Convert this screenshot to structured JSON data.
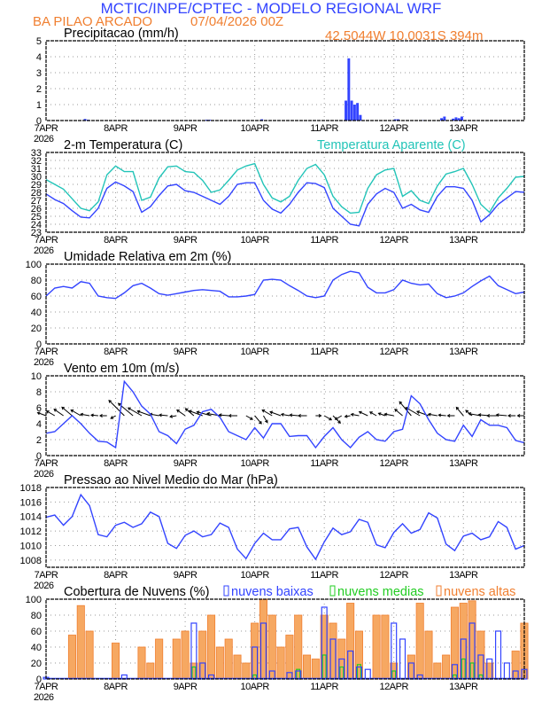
{
  "header": {
    "title": "MCTIC/INPE/CPTEC - MODELO REGIONAL WRF",
    "station": "BA PILAO ARCADO",
    "run": "07/04/2026 00Z",
    "location": "42.5044W 10.0031S 394m"
  },
  "colors": {
    "blue": "#3344ff",
    "orange": "#f07f30",
    "cyan": "#22c4b8",
    "green": "#22cc22",
    "orange_fill": "#f6a862"
  },
  "x_axis": {
    "labels": [
      "7APR",
      "8APR",
      "9APR",
      "10APR",
      "11APR",
      "12APR",
      "13APR"
    ],
    "year": "2026",
    "step_hours": 3,
    "range_hours": [
      0,
      165
    ]
  },
  "chart_data": [
    {
      "type": "bar",
      "id": "precip",
      "title": "Precipitacao (mm/h)",
      "ylim": [
        0,
        5
      ],
      "yticks": [
        "0",
        "1",
        "2",
        "3",
        "4",
        "5"
      ],
      "hourly_values": [
        [
          13,
          0.1
        ],
        [
          14,
          0.05
        ],
        [
          55,
          0.05
        ],
        [
          56,
          0.05
        ],
        [
          74,
          0.08
        ],
        [
          103,
          1.25
        ],
        [
          104,
          3.9
        ],
        [
          105,
          1.25
        ],
        [
          106,
          1.0
        ],
        [
          107,
          1.1
        ],
        [
          108,
          0.35
        ],
        [
          120,
          0.08
        ],
        [
          121,
          0.08
        ],
        [
          130,
          0.03
        ],
        [
          136,
          0.15
        ],
        [
          137,
          0.25
        ],
        [
          140,
          0.12
        ],
        [
          141,
          0.2
        ],
        [
          142,
          0.15
        ],
        [
          143,
          0.25
        ]
      ]
    },
    {
      "type": "line",
      "id": "temp",
      "title": "2-m Temperatura (C)",
      "ylim": [
        23,
        33
      ],
      "yticks": [
        "23",
        "24",
        "25",
        "26",
        "27",
        "28",
        "29",
        "30",
        "31",
        "32",
        "33"
      ],
      "series": [
        {
          "name": "Temperatura",
          "values": [
            27.8,
            27.1,
            26.6,
            25.7,
            24.9,
            24.8,
            26.0,
            28.5,
            29.3,
            28.8,
            28.1,
            25.5,
            26.2,
            27.6,
            28.8,
            29.0,
            28.2,
            28.0,
            27.5,
            27.0,
            26.5,
            27.5,
            29.0,
            29.2,
            29.2,
            27.0,
            25.9,
            25.4,
            26.5,
            28.0,
            29.2,
            29.1,
            28.6,
            26.0,
            25.0,
            24.0,
            23.8,
            26.5,
            27.8,
            28.5,
            28.0,
            26.0,
            26.5,
            25.8,
            25.5,
            27.5,
            28.7,
            28.7,
            28.5,
            27.0,
            24.3,
            25.2,
            26.5,
            27.3,
            28.1,
            28.0
          ]
        },
        {
          "name": "Temperatura Aparente (C)",
          "values": [
            29.6,
            29.0,
            28.4,
            27.2,
            26.0,
            25.7,
            26.8,
            30.2,
            31.3,
            30.6,
            30.6,
            27.0,
            27.4,
            29.8,
            31.2,
            31.3,
            30.6,
            30.5,
            29.5,
            28.0,
            28.3,
            29.5,
            30.8,
            31.3,
            31.6,
            29.0,
            27.3,
            26.8,
            27.5,
            29.5,
            31.0,
            31.5,
            30.2,
            27.5,
            26.2,
            25.4,
            25.5,
            28.5,
            30.2,
            30.8,
            31.0,
            27.5,
            28.2,
            27.0,
            26.6,
            28.8,
            30.3,
            30.6,
            31.0,
            29.0,
            26.5,
            25.5,
            27.3,
            28.5,
            29.9,
            30.0
          ]
        }
      ]
    },
    {
      "type": "line",
      "id": "rh",
      "title": "Umidade Relativa em 2m (%)",
      "ylim": [
        0,
        100
      ],
      "yticks": [
        "0",
        "20",
        "40",
        "60",
        "80",
        "100"
      ],
      "values": [
        60,
        70,
        72,
        70,
        78,
        76,
        60,
        58,
        57,
        64,
        73,
        76,
        70,
        63,
        61,
        63,
        65,
        67,
        68,
        67,
        66,
        59,
        59,
        60,
        62,
        80,
        81,
        80,
        73,
        67,
        60,
        58,
        60,
        80,
        87,
        91,
        89,
        71,
        64,
        64,
        68,
        80,
        76,
        74,
        75,
        63,
        58,
        60,
        64,
        72,
        79,
        85,
        73,
        68,
        63,
        65
      ]
    },
    {
      "type": "line",
      "id": "wind",
      "title": "Vento em 10m (m/s)",
      "ylim": [
        0,
        10
      ],
      "yticks": [
        "0",
        "2",
        "4",
        "6",
        "8",
        "10"
      ],
      "values": [
        2.8,
        3.0,
        4.0,
        5.0,
        4.0,
        2.8,
        1.8,
        1.7,
        1.0,
        9.3,
        8.0,
        6.2,
        5.2,
        3.0,
        2.5,
        1.5,
        3.3,
        3.8,
        5.5,
        5.8,
        4.8,
        3.0,
        2.5,
        2.0,
        3.5,
        2.2,
        4.0,
        4.0,
        2.4,
        2.5,
        2.5,
        1.0,
        2.4,
        3.5,
        2.0,
        1.0,
        2.3,
        3.0,
        2.0,
        1.8,
        3.0,
        3.3,
        7.5,
        6.5,
        4.5,
        2.8,
        2.0,
        1.8,
        3.8,
        2.4,
        4.5,
        3.8,
        3.8,
        3.5,
        1.9,
        1.6
      ],
      "direction_from_deg": [
        110,
        120,
        125,
        130,
        120,
        100,
        95,
        90,
        60,
        135,
        130,
        120,
        110,
        100,
        95,
        80,
        125,
        130,
        110,
        105,
        100,
        95,
        90,
        300,
        320,
        330,
        120,
        110,
        100,
        95,
        90,
        270,
        300,
        315,
        60,
        80,
        100,
        115,
        120,
        110,
        100,
        130,
        140,
        120,
        110,
        100,
        95,
        90,
        140,
        130,
        100,
        95,
        90,
        95,
        90,
        90
      ]
    },
    {
      "type": "line",
      "id": "pres",
      "title": "Pressao ao Nivel Medio do Mar (hPa)",
      "ylim": [
        1007,
        1018
      ],
      "yticks": [
        "1008",
        "1010",
        "1012",
        "1014",
        "1016",
        "1018"
      ],
      "values": [
        1013.9,
        1014.2,
        1012.8,
        1014.0,
        1017.0,
        1015.5,
        1011.5,
        1011.2,
        1012.8,
        1013.2,
        1012.5,
        1013.0,
        1014.6,
        1014.0,
        1010.3,
        1009.6,
        1011.4,
        1012.0,
        1011.2,
        1011.5,
        1013.1,
        1012.5,
        1009.5,
        1008.2,
        1010.3,
        1011.7,
        1010.8,
        1010.8,
        1012.3,
        1012.5,
        1009.8,
        1008.1,
        1010.5,
        1012.4,
        1011.5,
        1011.9,
        1013.6,
        1013.2,
        1010.1,
        1009.7,
        1011.8,
        1013.0,
        1011.7,
        1012.2,
        1014.5,
        1013.8,
        1010.2,
        1009.3,
        1011.3,
        1011.7,
        1010.8,
        1011.2,
        1013.3,
        1012.5,
        1009.5,
        1010.0
      ]
    },
    {
      "type": "bar",
      "id": "cloud",
      "title": "Cobertura de Nuvens (%)",
      "ylim": [
        0,
        100
      ],
      "yticks": [
        "0",
        "20",
        "40",
        "60",
        "80",
        "100"
      ],
      "series": [
        {
          "name": "nuvens altas",
          "values": [
            0,
            0,
            0,
            55,
            92,
            60,
            0,
            0,
            45,
            0,
            0,
            40,
            20,
            50,
            0,
            50,
            60,
            20,
            60,
            80,
            40,
            50,
            30,
            20,
            70,
            100,
            80,
            40,
            55,
            80,
            30,
            25,
            80,
            70,
            50,
            95,
            60,
            0,
            80,
            80,
            20,
            0,
            30,
            95,
            60,
            20,
            30,
            90,
            95,
            98,
            60,
            20,
            0,
            0,
            35,
            70
          ]
        },
        {
          "name": "nuvens baixas",
          "values": [
            2,
            0,
            0,
            0,
            0,
            0,
            0,
            0,
            0,
            5,
            0,
            0,
            0,
            0,
            0,
            0,
            0,
            70,
            20,
            5,
            0,
            0,
            0,
            0,
            40,
            70,
            10,
            0,
            8,
            10,
            0,
            0,
            90,
            50,
            25,
            35,
            15,
            12,
            0,
            0,
            70,
            50,
            20,
            5,
            0,
            0,
            0,
            18,
            50,
            70,
            30,
            25,
            60,
            20,
            10,
            12
          ]
        },
        {
          "name": "nuvens medias",
          "values": [
            0,
            0,
            0,
            0,
            0,
            0,
            0,
            0,
            0,
            0,
            0,
            0,
            0,
            0,
            0,
            0,
            0,
            15,
            0,
            0,
            0,
            0,
            0,
            0,
            5,
            0,
            0,
            0,
            0,
            12,
            0,
            0,
            30,
            0,
            15,
            0,
            18,
            0,
            0,
            0,
            10,
            0,
            0,
            0,
            0,
            0,
            0,
            5,
            25,
            20,
            5,
            0,
            0,
            0,
            0,
            0
          ]
        }
      ]
    }
  ]
}
